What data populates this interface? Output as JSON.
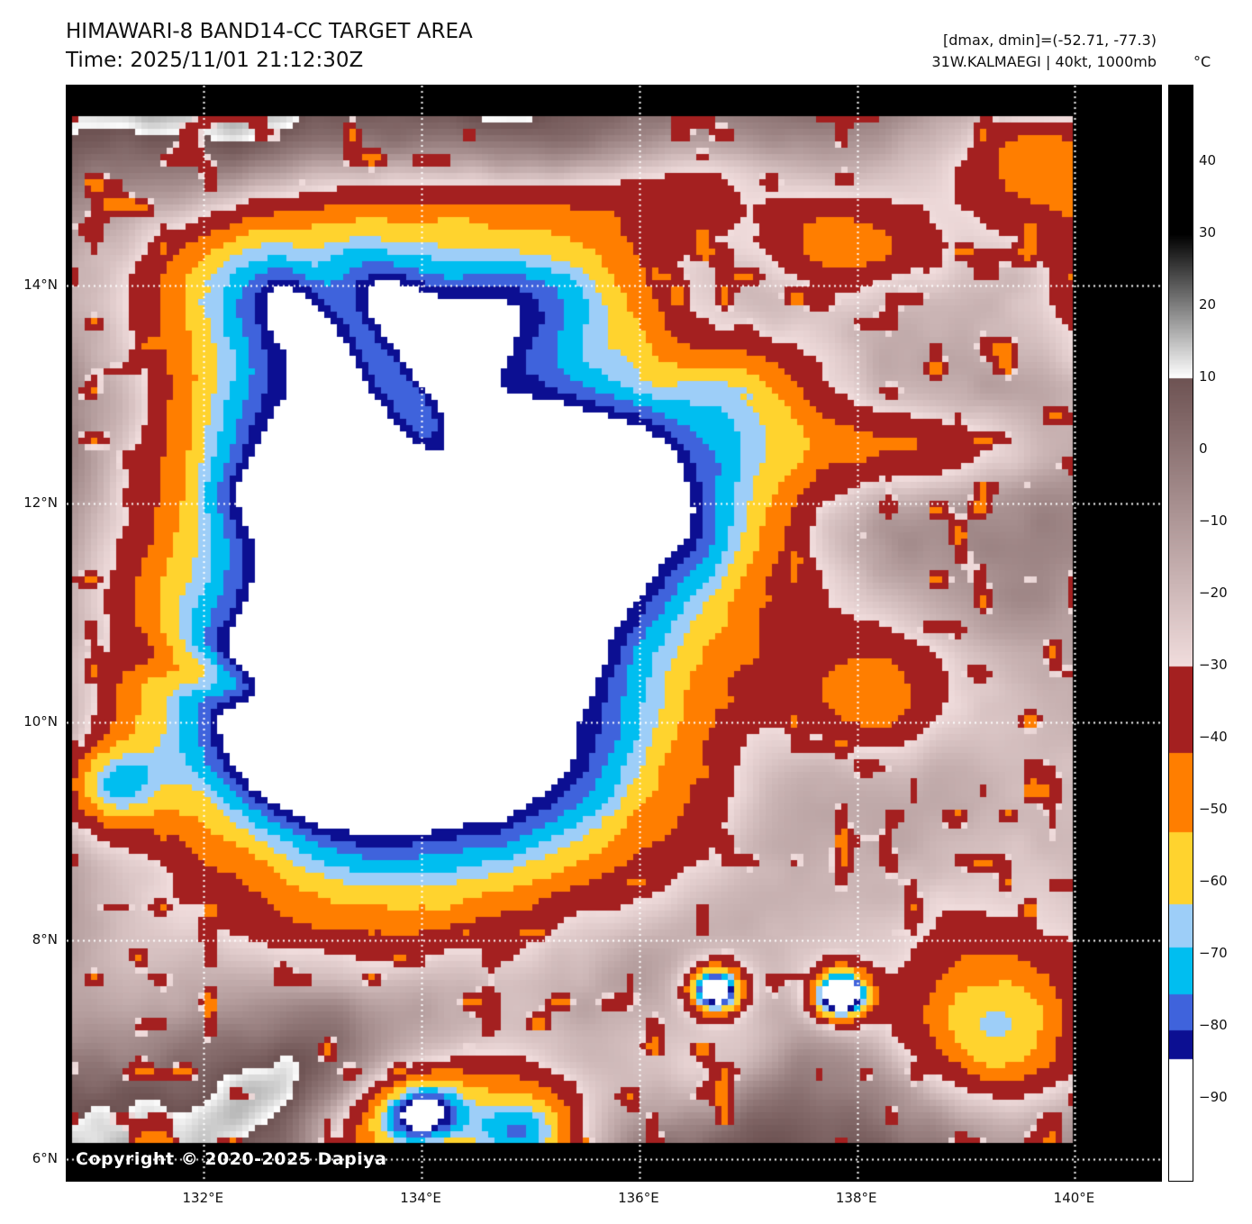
{
  "header": {
    "title": "HIMAWARI-8 BAND14-CC TARGET AREA",
    "time": "Time: 2025/11/01 21:12:30Z",
    "metrics": "[dmax, dmin]=(-52.71, -77.3)",
    "storm": "31W.KALMAEGI | 40kt, 1000mb"
  },
  "map": {
    "copyright": "Copyright © 2020-2025 Dapiya",
    "x_ticks": [
      {
        "label": "132°E",
        "lon": 132
      },
      {
        "label": "134°E",
        "lon": 134
      },
      {
        "label": "136°E",
        "lon": 136
      },
      {
        "label": "138°E",
        "lon": 138
      },
      {
        "label": "140°E",
        "lon": 140
      }
    ],
    "y_ticks": [
      {
        "label": "14°N",
        "lat": 14
      },
      {
        "label": "12°N",
        "lat": 12
      },
      {
        "label": "10°N",
        "lat": 10
      },
      {
        "label": "8°N",
        "lat": 8
      },
      {
        "label": "6°N",
        "lat": 6
      }
    ]
  },
  "colorbar": {
    "unit": "°C",
    "vmax": 50.5,
    "vmin": -101.5,
    "ticks": [
      {
        "label": "40",
        "value": 40
      },
      {
        "label": "30",
        "value": 30
      },
      {
        "label": "20",
        "value": 20
      },
      {
        "label": "10",
        "value": 10
      },
      {
        "label": "0",
        "value": 0
      },
      {
        "label": "−10",
        "value": -10
      },
      {
        "label": "−20",
        "value": -20
      },
      {
        "label": "−30",
        "value": -30
      },
      {
        "label": "−40",
        "value": -40
      },
      {
        "label": "−50",
        "value": -50
      },
      {
        "label": "−60",
        "value": -60
      },
      {
        "label": "−70",
        "value": -70
      },
      {
        "label": "−80",
        "value": -80
      },
      {
        "label": "−90",
        "value": -90
      }
    ]
  },
  "chart_data": {
    "type": "heatmap",
    "title": "HIMAWARI-8 BAND14-CC TARGET AREA",
    "time_utc": "2025/11/01 21:12:30Z",
    "satellite": "HIMAWARI-8",
    "band": "BAND14-CC",
    "storm_id": "31W.KALMAEGI",
    "intensity_kt": 40,
    "pressure_mb": 1000,
    "dmax_c": -52.71,
    "dmin_c": -77.3,
    "unit": "°C",
    "lon_range": [
      130.74,
      140.79
    ],
    "lat_range": [
      5.8,
      15.83
    ],
    "data_swath": {
      "lon": [
        130.79,
        139.98
      ],
      "lat": [
        6.15,
        15.55
      ]
    },
    "gridlines": {
      "lons": [
        132,
        134,
        136,
        138,
        140
      ],
      "lats": [
        6,
        8,
        10,
        12,
        14
      ],
      "style": "dotted-white"
    },
    "storm_center": {
      "lon": 134.5,
      "lat": 11.0
    },
    "palette": [
      {
        "from": 50.5,
        "to": 30,
        "kind": "solid",
        "color": "#000000"
      },
      {
        "from": 30,
        "to": 10,
        "kind": "gradient",
        "c0": "#000000",
        "c1": "#ffffff"
      },
      {
        "from": 10,
        "to": -30,
        "kind": "gradient",
        "c0": "#6e5353",
        "c1": "#f1dddd"
      },
      {
        "from": -30,
        "to": -42,
        "kind": "solid",
        "color": "#a42020"
      },
      {
        "from": -42,
        "to": -53,
        "kind": "solid",
        "color": "#ff7e00"
      },
      {
        "from": -53,
        "to": -63,
        "kind": "solid",
        "color": "#ffd32e"
      },
      {
        "from": -63,
        "to": -69,
        "kind": "solid",
        "color": "#9dcef8"
      },
      {
        "from": -69,
        "to": -75.5,
        "kind": "solid",
        "color": "#00bef0"
      },
      {
        "from": -75.5,
        "to": -80.5,
        "kind": "solid",
        "color": "#3f63dc"
      },
      {
        "from": -80.5,
        "to": -84.5,
        "kind": "solid",
        "color": "#0c0f92"
      },
      {
        "from": -84.5,
        "to": -101.5,
        "kind": "solid",
        "color": "#ffffff"
      }
    ],
    "field": {
      "base_temp_c": 24,
      "noise_amp_c": 11,
      "noise_amp_cold_c": 6,
      "pixel_size_px": 7,
      "features": [
        {
          "name": "mauve-se",
          "lon": 137.6,
          "lat": 9.2,
          "sx": 3.0,
          "sy": 2.6,
          "amp": -34
        },
        {
          "name": "mauve-s",
          "lon": 134.8,
          "lat": 7.0,
          "sx": 2.6,
          "sy": 1.6,
          "amp": -28
        },
        {
          "name": "mauve-se2",
          "lon": 139.3,
          "lat": 7.6,
          "sx": 2.0,
          "sy": 1.6,
          "amp": -22
        },
        {
          "name": "mauve-ne",
          "lon": 139.0,
          "lat": 14.6,
          "sx": 2.2,
          "sy": 1.4,
          "amp": -30
        },
        {
          "name": "mauve-e",
          "lon": 140.2,
          "lat": 11.5,
          "sx": 1.6,
          "sy": 2.2,
          "amp": -24
        },
        {
          "name": "mauve-nw",
          "lon": 132.6,
          "lat": 14.35,
          "sx": 1.6,
          "sy": 1.0,
          "amp": -20
        },
        {
          "name": "mauve-w",
          "lon": 130.9,
          "lat": 13.4,
          "sx": 1.0,
          "sy": 1.2,
          "amp": -22
        },
        {
          "name": "mauve-sw",
          "lon": 131.2,
          "lat": 7.8,
          "sx": 1.4,
          "sy": 1.6,
          "amp": -26
        },
        {
          "name": "gray-warm-s",
          "lon": 135.4,
          "lat": 8.05,
          "sx": 1.0,
          "sy": 0.75,
          "amp": 26
        },
        {
          "name": "gray-warm-se",
          "lon": 137.3,
          "lat": 6.6,
          "sx": 1.2,
          "sy": 0.8,
          "amp": 30
        },
        {
          "name": "gray-warm-e",
          "lon": 139.0,
          "lat": 8.9,
          "sx": 0.8,
          "sy": 0.6,
          "amp": 20
        },
        {
          "name": "gray-warm-e2",
          "lon": 139.8,
          "lat": 11.9,
          "sx": 0.9,
          "sy": 0.8,
          "amp": 16
        },
        {
          "name": "gray-warm-sw-band",
          "lon": 132.8,
          "lat": 6.9,
          "sx": 1.3,
          "sy": 0.5,
          "amp": 26,
          "rot": 20
        },
        {
          "name": "cdo-canopy",
          "lon": 134.3,
          "lat": 10.95,
          "sx": 2.6,
          "sy": 2.5,
          "amp": -95,
          "p": 2
        },
        {
          "name": "canopy-north-band",
          "lon": 134.0,
          "lat": 14.2,
          "sx": 1.9,
          "sy": 0.75,
          "amp": -48,
          "p": 1.5
        },
        {
          "name": "canopy-nw",
          "lon": 132.6,
          "lat": 13.3,
          "sx": 1.0,
          "sy": 0.9,
          "amp": -28,
          "p": 1.5
        },
        {
          "name": "canopy-west",
          "lon": 132.0,
          "lat": 10.7,
          "sx": 1.3,
          "sy": 1.3,
          "amp": -14
        },
        {
          "name": "cold-north-complex",
          "lon": 134.9,
          "lat": 12.95,
          "sx": 1.7,
          "sy": 1.1,
          "amp": -12
        },
        {
          "name": "main-cold-core",
          "lon": 134.55,
          "lat": 10.95,
          "sx": 0.8,
          "sy": 0.68,
          "amp": -11
        },
        {
          "name": "core-n1",
          "lon": 134.62,
          "lat": 12.6,
          "sx": 0.42,
          "sy": 0.34,
          "amp": -9
        },
        {
          "name": "core-n2",
          "lon": 135.75,
          "lat": 12.72,
          "sx": 0.5,
          "sy": 0.38,
          "amp": -9
        },
        {
          "name": "core-n3",
          "lon": 133.95,
          "lat": 13.15,
          "sx": 0.32,
          "sy": 0.28,
          "amp": -9
        },
        {
          "name": "core-e1",
          "lon": 135.85,
          "lat": 12.1,
          "sx": 0.45,
          "sy": 0.35,
          "amp": -10
        },
        {
          "name": "core-nw1",
          "lon": 133.4,
          "lat": 12.3,
          "sx": 0.35,
          "sy": 0.3,
          "amp": -10
        },
        {
          "name": "core-w1",
          "lon": 132.35,
          "lat": 12.05,
          "sx": 0.38,
          "sy": 0.32,
          "amp": -12
        },
        {
          "name": "core-w2",
          "lon": 133.05,
          "lat": 10.85,
          "sx": 0.45,
          "sy": 0.4,
          "amp": -10
        },
        {
          "name": "cold-sw",
          "lon": 132.2,
          "lat": 9.95,
          "sx": 0.8,
          "sy": 0.6,
          "amp": -14
        },
        {
          "name": "cold-s",
          "lon": 133.3,
          "lat": 9.6,
          "sx": 0.7,
          "sy": 0.4,
          "amp": -10
        },
        {
          "name": "cold-top",
          "lon": 135.4,
          "lat": 13.95,
          "sx": 0.55,
          "sy": 0.3,
          "amp": -9
        },
        {
          "name": "dry-slot-east",
          "lon": 136.75,
          "lat": 10.0,
          "sx": 0.85,
          "sy": 1.2,
          "amp": 32
        },
        {
          "name": "dry-streak-nw",
          "lon": 133.62,
          "lat": 13.3,
          "sx": 0.2,
          "sy": 0.85,
          "amp": 24,
          "rot": 35
        },
        {
          "name": "warm-streak-w",
          "lon": 132.0,
          "lat": 10.45,
          "sx": 0.55,
          "sy": 0.14,
          "amp": 18,
          "rot": -20
        },
        {
          "name": "conv-east-mass",
          "lon": 136.75,
          "lat": 11.9,
          "sx": 0.75,
          "sy": 0.6,
          "amp": -20
        },
        {
          "name": "conv-ne1",
          "lon": 137.0,
          "lat": 13.05,
          "sx": 0.5,
          "sy": 0.4,
          "amp": -28
        },
        {
          "name": "conv-band-ne",
          "lon": 138.5,
          "lat": 12.5,
          "sx": 0.9,
          "sy": 0.3,
          "amp": -34
        },
        {
          "name": "conv-top1",
          "lon": 136.4,
          "lat": 14.9,
          "sx": 0.9,
          "sy": 0.35,
          "amp": -30
        },
        {
          "name": "conv-top2",
          "lon": 137.9,
          "lat": 14.35,
          "sx": 0.6,
          "sy": 0.3,
          "amp": -32
        },
        {
          "name": "conv-ne-corner",
          "lon": 139.9,
          "lat": 15.2,
          "sx": 0.9,
          "sy": 0.4,
          "amp": -38
        },
        {
          "name": "conv-e-corner",
          "lon": 140.4,
          "lat": 13.9,
          "sx": 0.5,
          "sy": 0.8,
          "amp": -32
        },
        {
          "name": "conv-e2",
          "lon": 138.15,
          "lat": 10.35,
          "sx": 0.55,
          "sy": 0.45,
          "amp": -32
        },
        {
          "name": "cell-s1",
          "lon": 136.7,
          "lat": 7.55,
          "sx": 0.17,
          "sy": 0.15,
          "amp": -90
        },
        {
          "name": "cell-s2",
          "lon": 137.85,
          "lat": 7.5,
          "sx": 0.18,
          "sy": 0.16,
          "amp": -94
        },
        {
          "name": "conv-se",
          "lon": 139.25,
          "lat": 7.15,
          "sx": 0.55,
          "sy": 0.45,
          "amp": -42
        },
        {
          "name": "cell-bottom1",
          "lon": 134.0,
          "lat": 6.45,
          "sx": 0.28,
          "sy": 0.22,
          "amp": -45
        },
        {
          "name": "cell-bottom2",
          "lon": 134.95,
          "lat": 6.2,
          "sx": 0.35,
          "sy": 0.28,
          "amp": -40
        },
        {
          "name": "conv-bottom",
          "lon": 134.5,
          "lat": 6.4,
          "sx": 0.8,
          "sy": 0.5,
          "amp": -33
        },
        {
          "name": "conv-bottom2",
          "lon": 133.6,
          "lat": 6.15,
          "sx": 0.4,
          "sy": 0.3,
          "amp": -30
        },
        {
          "name": "cell-w",
          "lon": 131.15,
          "lat": 9.4,
          "sx": 0.32,
          "sy": 0.28,
          "amp": -45
        },
        {
          "name": "conv-s3",
          "lon": 136.6,
          "lat": 6.85,
          "sx": 0.5,
          "sy": 0.4,
          "amp": -26
        }
      ]
    }
  }
}
